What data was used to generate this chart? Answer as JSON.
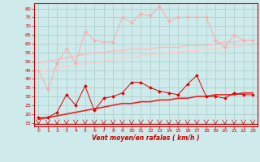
{
  "x": [
    0,
    1,
    2,
    3,
    4,
    5,
    6,
    7,
    8,
    9,
    10,
    11,
    12,
    13,
    14,
    15,
    16,
    17,
    18,
    19,
    20,
    21,
    22,
    23
  ],
  "line1_rafales": [
    45,
    34,
    49,
    57,
    49,
    67,
    62,
    61,
    61,
    75,
    72,
    77,
    76,
    81,
    73,
    75,
    75,
    75,
    75,
    62,
    58,
    65,
    62,
    62
  ],
  "line2_trend_rafales": [
    49,
    50,
    51,
    52,
    53,
    54,
    55,
    55,
    56,
    56,
    57,
    57,
    57,
    58,
    58,
    58,
    59,
    59,
    59,
    60,
    61,
    61,
    62,
    62
  ],
  "line3_trend_moyen": [
    44,
    45,
    46,
    47,
    48,
    49,
    49,
    50,
    51,
    52,
    52,
    53,
    54,
    54,
    55,
    55,
    56,
    56,
    57,
    57,
    58,
    58,
    59,
    59
  ],
  "line4_vent": [
    18,
    18,
    21,
    31,
    25,
    36,
    22,
    29,
    30,
    32,
    38,
    38,
    35,
    33,
    32,
    31,
    37,
    42,
    30,
    30,
    29,
    32,
    31,
    31
  ],
  "line5_trend_vent": [
    17,
    18,
    19,
    20,
    21,
    22,
    23,
    24,
    25,
    26,
    26,
    27,
    27,
    28,
    28,
    29,
    29,
    30,
    30,
    31,
    31,
    31,
    32,
    32
  ],
  "bg_color": "#ceeaea",
  "grid_color": "#aacccc",
  "line1_color": "#ffaaaa",
  "line2_color": "#ffbbbb",
  "line3_color": "#ffcccc",
  "line4_color": "#dd0000",
  "line5_color": "#ee2222",
  "xlabel": "Vent moyen/en rafales ( km/h )",
  "ylim": [
    13,
    83
  ],
  "xlim": [
    -0.5,
    23.5
  ],
  "yticks": [
    15,
    20,
    25,
    30,
    35,
    40,
    45,
    50,
    55,
    60,
    65,
    70,
    75,
    80
  ],
  "xticks": [
    0,
    1,
    2,
    3,
    4,
    5,
    6,
    7,
    8,
    9,
    10,
    11,
    12,
    13,
    14,
    15,
    16,
    17,
    18,
    19,
    20,
    21,
    22,
    23
  ]
}
